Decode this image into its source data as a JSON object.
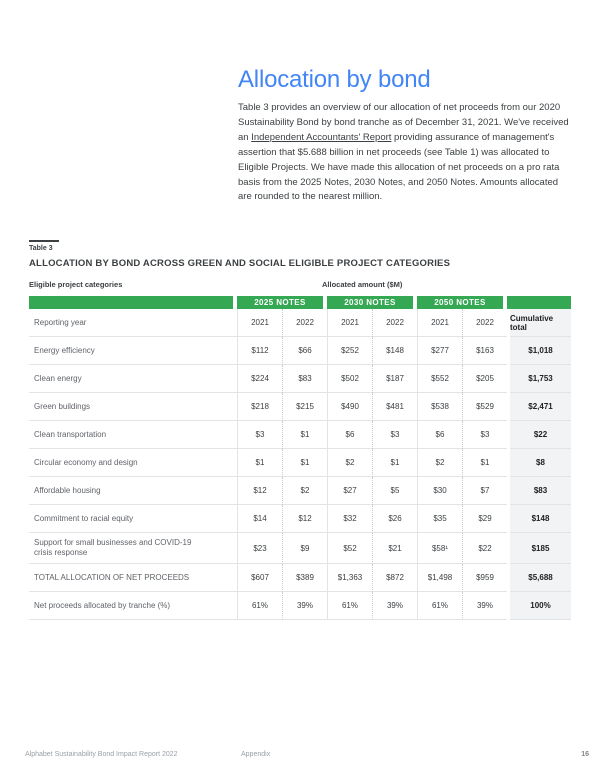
{
  "page": {
    "title": "Allocation by bond",
    "intro": {
      "before_link": "Table 3 provides an overview of our allocation of net proceeds from our 2020 Sustainability Bond by bond tranche as of December 31, 2021. We've received an ",
      "link": "Independent Accountants' Report",
      "after_link": " providing assurance of management's assertion that $5.688 billion in net proceeds (see Table 1) was allocated to Eligible Projects. We have made this allocation of net proceeds on a pro rata basis from the 2025 Notes, 2030 Notes, and 2050 Notes. Amounts allocated are rounded to the nearest million."
    }
  },
  "table": {
    "label": "Table 3",
    "heading": "ALLOCATION BY BOND ACROSS GREEN AND SOCIAL ELIGIBLE PROJECT CATEGORIES",
    "categories_label": "Eligible project categories",
    "amount_label": "Allocated amount ($M)",
    "note_groups": [
      "2025 NOTES",
      "2030 NOTES",
      "2050 NOTES"
    ],
    "reporting_year_label": "Reporting year",
    "years": [
      "2021",
      "2022",
      "2021",
      "2022",
      "2021",
      "2022"
    ],
    "cumulative_label": "Cumulative total",
    "rows": [
      {
        "label": "Energy efficiency",
        "values": [
          "$112",
          "$66",
          "$252",
          "$148",
          "$277",
          "$163"
        ],
        "cumulative": "$1,018"
      },
      {
        "label": "Clean energy",
        "values": [
          "$224",
          "$83",
          "$502",
          "$187",
          "$552",
          "$205"
        ],
        "cumulative": "$1,753"
      },
      {
        "label": "Green buildings",
        "values": [
          "$218",
          "$215",
          "$490",
          "$481",
          "$538",
          "$529"
        ],
        "cumulative": "$2,471"
      },
      {
        "label": "Clean transportation",
        "values": [
          "$3",
          "$1",
          "$6",
          "$3",
          "$6",
          "$3"
        ],
        "cumulative": "$22"
      },
      {
        "label": "Circular economy and design",
        "values": [
          "$1",
          "$1",
          "$2",
          "$1",
          "$2",
          "$1"
        ],
        "cumulative": "$8"
      },
      {
        "label": "Affordable housing",
        "values": [
          "$12",
          "$2",
          "$27",
          "$5",
          "$30",
          "$7"
        ],
        "cumulative": "$83"
      },
      {
        "label": "Commitment to racial equity",
        "values": [
          "$14",
          "$12",
          "$32",
          "$26",
          "$35",
          "$29"
        ],
        "cumulative": "$148"
      },
      {
        "label": "Support for small businesses and COVID-19 crisis response",
        "values": [
          "$23",
          "$9",
          "$52",
          "$21",
          "$58¹",
          "$22"
        ],
        "cumulative": "$185",
        "tall": true
      }
    ],
    "total_row": {
      "label": "TOTAL ALLOCATION OF NET PROCEEDS",
      "values": [
        "$607",
        "$389",
        "$1,363",
        "$872",
        "$1,498",
        "$959"
      ],
      "cumulative": "$5,688"
    },
    "pct_row": {
      "label": "Net proceeds allocated by tranche (%)",
      "values": [
        "61%",
        "39%",
        "61%",
        "39%",
        "61%",
        "39%"
      ],
      "cumulative": "100%"
    }
  },
  "footer": {
    "report_title": "Alphabet Sustainability Bond Impact Report 2022",
    "section": "Appendix",
    "page_number": "16"
  },
  "colors": {
    "accent_blue": "#4285f4",
    "header_green": "#34a853"
  }
}
